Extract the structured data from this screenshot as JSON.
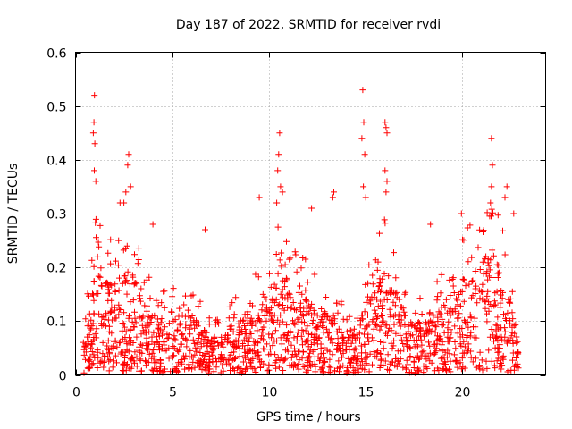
{
  "chart_data": {
    "type": "scatter",
    "title": "Day 187 of 2022, SRMTID for receiver rvdi",
    "xlabel": "GPS time / hours",
    "ylabel": "SRMTID / TECUs",
    "xlim": [
      0,
      24.3
    ],
    "ylim": [
      0,
      0.6
    ],
    "xticks": [
      0,
      5,
      10,
      15,
      20
    ],
    "yticks": [
      0,
      0.1,
      0.2,
      0.3,
      0.4,
      0.5,
      0.6
    ],
    "xtick_labels": [
      "0",
      "5",
      "10",
      "15",
      "20"
    ],
    "ytick_labels": [
      "0",
      "0.1",
      "0.2",
      "0.3",
      "0.4",
      "0.5",
      "0.6"
    ],
    "grid": true,
    "marker": "+",
    "color": "#ff0000",
    "series": [
      {
        "name": "SRMTID",
        "x_range": [
          0.4,
          22.9
        ],
        "n_points": 1700,
        "peaks": [
          {
            "x": 0.98,
            "y": 0.52
          },
          {
            "x": 0.95,
            "y": 0.47
          },
          {
            "x": 0.92,
            "y": 0.45
          },
          {
            "x": 1.0,
            "y": 0.43
          },
          {
            "x": 0.97,
            "y": 0.38
          },
          {
            "x": 1.05,
            "y": 0.36
          },
          {
            "x": 2.75,
            "y": 0.41
          },
          {
            "x": 2.7,
            "y": 0.39
          },
          {
            "x": 2.85,
            "y": 0.35
          },
          {
            "x": 2.6,
            "y": 0.34
          },
          {
            "x": 2.5,
            "y": 0.32
          },
          {
            "x": 2.3,
            "y": 0.32
          },
          {
            "x": 4.0,
            "y": 0.28
          },
          {
            "x": 6.7,
            "y": 0.27
          },
          {
            "x": 9.5,
            "y": 0.33
          },
          {
            "x": 10.55,
            "y": 0.45
          },
          {
            "x": 10.5,
            "y": 0.41
          },
          {
            "x": 10.45,
            "y": 0.38
          },
          {
            "x": 10.6,
            "y": 0.35
          },
          {
            "x": 10.7,
            "y": 0.34
          },
          {
            "x": 10.4,
            "y": 0.32
          },
          {
            "x": 12.2,
            "y": 0.31
          },
          {
            "x": 13.35,
            "y": 0.34
          },
          {
            "x": 13.3,
            "y": 0.33
          },
          {
            "x": 14.85,
            "y": 0.53
          },
          {
            "x": 14.9,
            "y": 0.47
          },
          {
            "x": 14.8,
            "y": 0.44
          },
          {
            "x": 14.95,
            "y": 0.41
          },
          {
            "x": 14.88,
            "y": 0.35
          },
          {
            "x": 15.0,
            "y": 0.33
          },
          {
            "x": 16.0,
            "y": 0.47
          },
          {
            "x": 16.05,
            "y": 0.46
          },
          {
            "x": 16.1,
            "y": 0.45
          },
          {
            "x": 16.0,
            "y": 0.38
          },
          {
            "x": 16.1,
            "y": 0.36
          },
          {
            "x": 16.05,
            "y": 0.34
          },
          {
            "x": 18.35,
            "y": 0.28
          },
          {
            "x": 19.95,
            "y": 0.3
          },
          {
            "x": 21.5,
            "y": 0.44
          },
          {
            "x": 21.55,
            "y": 0.39
          },
          {
            "x": 21.5,
            "y": 0.35
          },
          {
            "x": 21.45,
            "y": 0.32
          },
          {
            "x": 22.3,
            "y": 0.35
          },
          {
            "x": 22.2,
            "y": 0.33
          },
          {
            "x": 22.65,
            "y": 0.3
          }
        ],
        "density_profile": [
          {
            "x": 0.5,
            "level": 0.05
          },
          {
            "x": 1.0,
            "level": 0.14
          },
          {
            "x": 2.0,
            "level": 0.12
          },
          {
            "x": 2.8,
            "level": 0.14
          },
          {
            "x": 4.0,
            "level": 0.08
          },
          {
            "x": 6.0,
            "level": 0.08
          },
          {
            "x": 7.0,
            "level": 0.05
          },
          {
            "x": 9.0,
            "level": 0.08
          },
          {
            "x": 10.5,
            "level": 0.14
          },
          {
            "x": 12.0,
            "level": 0.1
          },
          {
            "x": 13.5,
            "level": 0.07
          },
          {
            "x": 14.5,
            "level": 0.05
          },
          {
            "x": 15.0,
            "level": 0.1
          },
          {
            "x": 16.0,
            "level": 0.14
          },
          {
            "x": 17.5,
            "level": 0.07
          },
          {
            "x": 18.5,
            "level": 0.08
          },
          {
            "x": 19.5,
            "level": 0.11
          },
          {
            "x": 20.5,
            "level": 0.14
          },
          {
            "x": 21.5,
            "level": 0.17
          },
          {
            "x": 22.5,
            "level": 0.1
          },
          {
            "x": 22.9,
            "level": 0.05
          }
        ]
      }
    ]
  }
}
